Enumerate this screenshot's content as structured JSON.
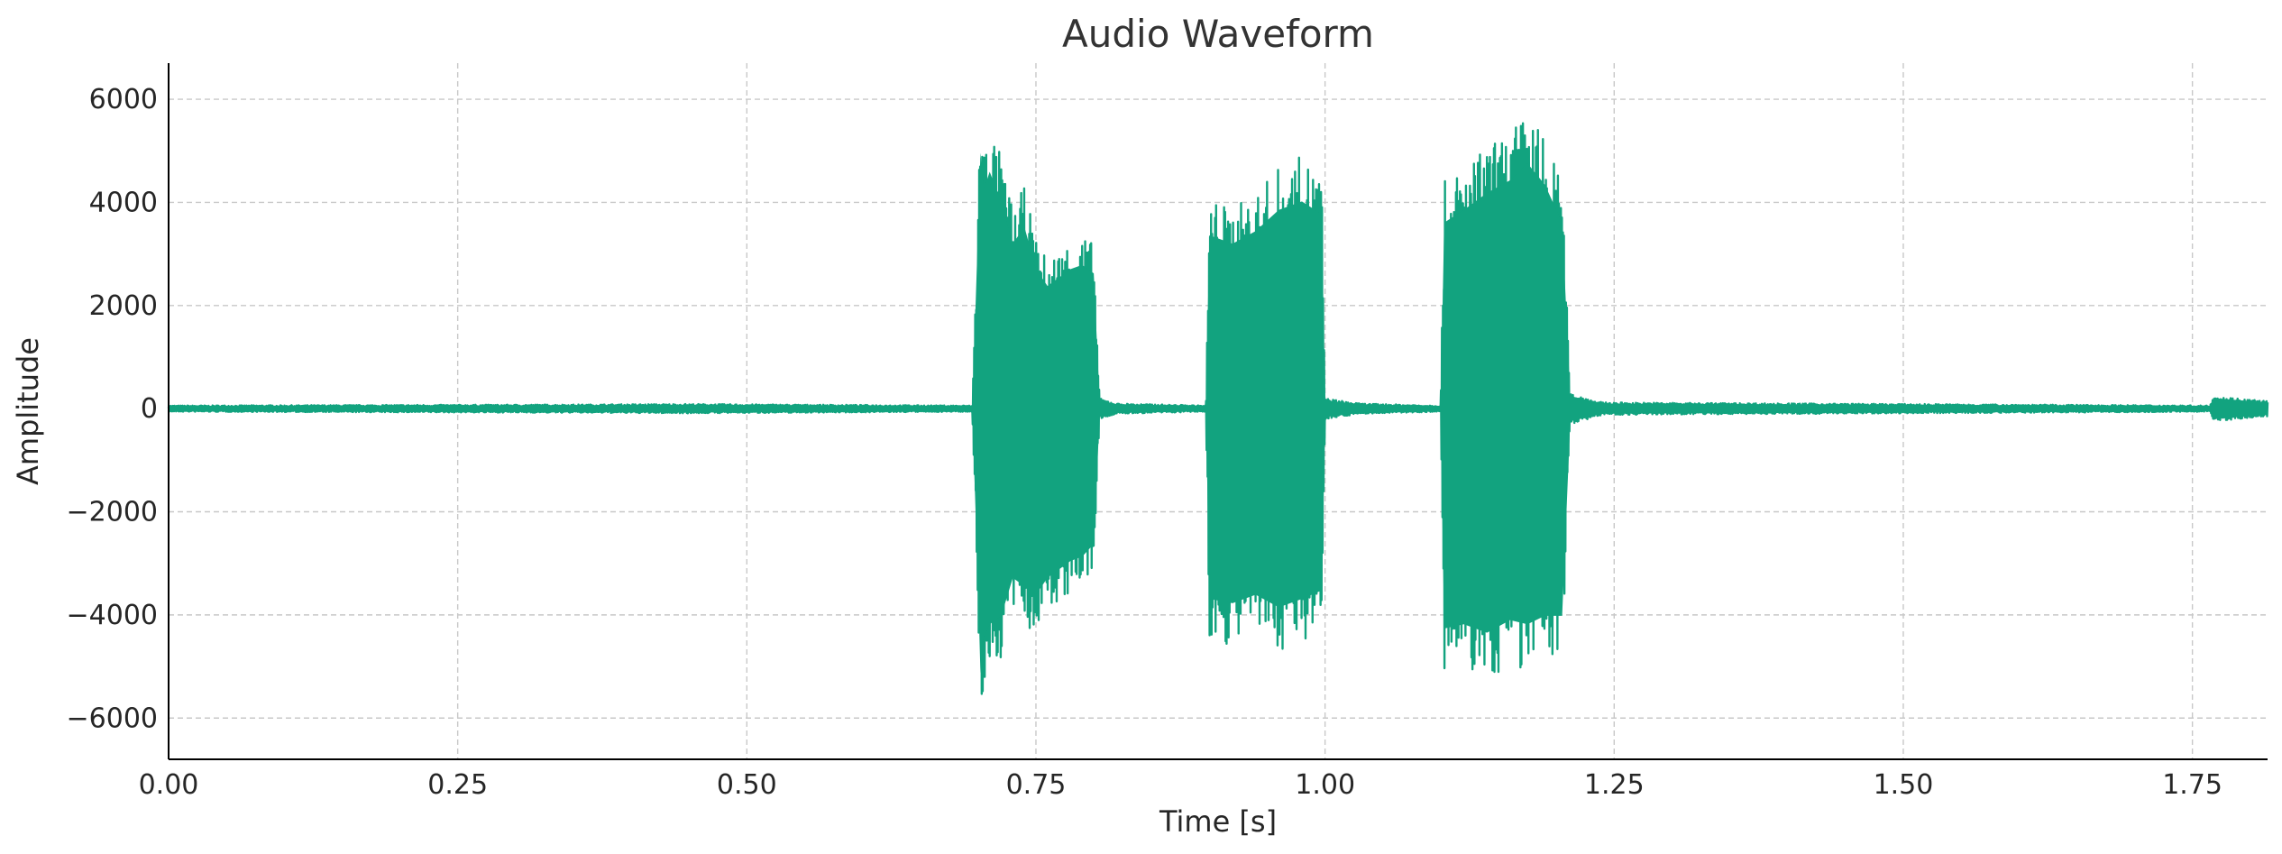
{
  "chart_data": {
    "type": "line",
    "title": "Audio Waveform",
    "xlabel": "Time [s]",
    "ylabel": "Amplitude",
    "xlim": [
      0.0,
      1.815
    ],
    "ylim": [
      -6800,
      6700
    ],
    "xticks": [
      0.0,
      0.25,
      0.5,
      0.75,
      1.0,
      1.25,
      1.5,
      1.75
    ],
    "xtick_labels": [
      "0.00",
      "0.25",
      "0.50",
      "0.75",
      "1.00",
      "1.25",
      "1.50",
      "1.75"
    ],
    "yticks": [
      6000,
      4000,
      2000,
      0,
      -2000,
      -4000,
      -6000
    ],
    "ytick_labels": [
      "6000",
      "4000",
      "2000",
      "0",
      "−2000",
      "−4000",
      "−6000"
    ],
    "grid": true,
    "color": "#12a37f",
    "series": [
      {
        "x": [
          0.0,
          0.35,
          0.45,
          0.695,
          0.7,
          0.702,
          0.705,
          0.71,
          0.72,
          0.73,
          0.74,
          0.75,
          0.76,
          0.77,
          0.78,
          0.79,
          0.8,
          0.805,
          0.82,
          0.897,
          0.9,
          0.92,
          0.94,
          0.96,
          0.98,
          0.997,
          1.0,
          1.03,
          1.1,
          1.103,
          1.12,
          1.14,
          1.16,
          1.175,
          1.19,
          1.205,
          1.212,
          1.24,
          1.765,
          1.768,
          1.79,
          1.815
        ],
        "upper": [
          60,
          80,
          90,
          60,
          4300,
          6050,
          5200,
          5600,
          4900,
          3900,
          4300,
          3300,
          2900,
          3100,
          3300,
          3400,
          3200,
          200,
          100,
          60,
          4100,
          3900,
          4200,
          4700,
          4900,
          4600,
          200,
          100,
          60,
          4400,
          4700,
          5100,
          5400,
          5800,
          5300,
          4400,
          300,
          120,
          60,
          250,
          200,
          150
        ],
        "lower": [
          -60,
          -80,
          -90,
          -60,
          -4300,
          -6250,
          -5400,
          -5100,
          -4900,
          -4000,
          -4200,
          -4400,
          -4000,
          -3800,
          -3600,
          -3500,
          -3200,
          -200,
          -100,
          -60,
          -4500,
          -4600,
          -4400,
          -4700,
          -4500,
          -4300,
          -200,
          -100,
          -60,
          -5200,
          -5100,
          -5300,
          -5000,
          -5100,
          -4900,
          -4900,
          -300,
          -120,
          -60,
          -250,
          -200,
          -150
        ]
      }
    ]
  }
}
